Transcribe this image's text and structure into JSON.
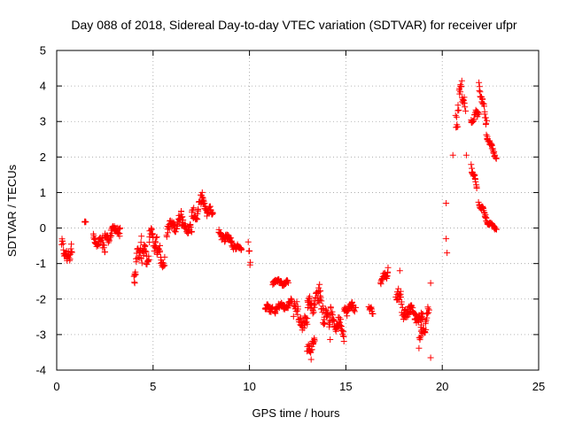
{
  "chart_data": {
    "type": "scatter",
    "title": "Day 088 of 2018, Sidereal Day-to-day VTEC variation (SDTVAR) for receiver ufpr",
    "xlabel": "GPS time / hours",
    "ylabel": "SDTVAR / TECUs",
    "xlim": [
      0,
      25
    ],
    "ylim": [
      -4,
      5
    ],
    "xticks": [
      "0",
      "5",
      "10",
      "15",
      "20",
      "25"
    ],
    "yticks": [
      "-4",
      "-3",
      "-2",
      "-1",
      "0",
      "1",
      "2",
      "3",
      "4",
      "5"
    ],
    "grid": true,
    "marker": "+",
    "colors": {
      "points": "#ff0000",
      "grid": "#a0a0a0",
      "axis": "#000000"
    },
    "series": [
      {
        "name": "SDTVAR",
        "segments": [
          {
            "x": [
              0.25,
              0.55
            ],
            "y": [
              -0.45,
              -0.9
            ],
            "jitter": 0.2
          },
          {
            "x": [
              0.55,
              0.8
            ],
            "y": [
              -0.85,
              -0.6
            ],
            "jitter": 0.2
          },
          {
            "x": [
              1.45,
              1.5
            ],
            "y": [
              0.18,
              0.18
            ],
            "jitter": 0.02
          },
          {
            "x": [
              1.9,
              2.5
            ],
            "y": [
              -0.35,
              -0.5
            ],
            "jitter": 0.22
          },
          {
            "x": [
              2.5,
              3.3
            ],
            "y": [
              -0.25,
              0.0
            ],
            "jitter": 0.22
          },
          {
            "x": [
              4.0,
              4.4
            ],
            "y": [
              -1.4,
              -0.3
            ],
            "jitter": 0.35
          },
          {
            "x": [
              4.4,
              4.8
            ],
            "y": [
              -0.6,
              -0.9
            ],
            "jitter": 0.4
          },
          {
            "x": [
              4.8,
              5.2
            ],
            "y": [
              -0.1,
              -0.5
            ],
            "jitter": 0.3
          },
          {
            "x": [
              5.2,
              5.6
            ],
            "y": [
              -0.5,
              -1.1
            ],
            "jitter": 0.3
          },
          {
            "x": [
              5.7,
              6.5
            ],
            "y": [
              -0.1,
              0.3
            ],
            "jitter": 0.25
          },
          {
            "x": [
              6.5,
              7.0
            ],
            "y": [
              0.1,
              -0.1
            ],
            "jitter": 0.2
          },
          {
            "x": [
              7.0,
              7.6
            ],
            "y": [
              0.2,
              0.8
            ],
            "jitter": 0.3
          },
          {
            "x": [
              7.6,
              8.1
            ],
            "y": [
              0.6,
              0.4
            ],
            "jitter": 0.2
          },
          {
            "x": [
              8.4,
              9.2
            ],
            "y": [
              -0.1,
              -0.45
            ],
            "jitter": 0.18
          },
          {
            "x": [
              9.2,
              9.6
            ],
            "y": [
              -0.5,
              -0.55
            ],
            "jitter": 0.1
          },
          {
            "x": [
              9.95,
              10.05
            ],
            "y": [
              -0.4,
              -1.0
            ],
            "jitter": 0.2
          },
          {
            "x": [
              10.8,
              11.2
            ],
            "y": [
              -2.2,
              -2.3
            ],
            "jitter": 0.12
          },
          {
            "x": [
              11.2,
              12.0
            ],
            "y": [
              -1.5,
              -1.55
            ],
            "jitter": 0.1
          },
          {
            "x": [
              11.3,
              12.2
            ],
            "y": [
              -2.3,
              -2.1
            ],
            "jitter": 0.15
          },
          {
            "x": [
              12.3,
              13.0
            ],
            "y": [
              -2.3,
              -2.8
            ],
            "jitter": 0.35
          },
          {
            "x": [
              13.0,
              13.4
            ],
            "y": [
              -3.5,
              -3.2
            ],
            "jitter": 0.2
          },
          {
            "x": [
              13.0,
              13.6
            ],
            "y": [
              -2.2,
              -2.0
            ],
            "jitter": 0.3
          },
          {
            "x": [
              13.6,
              14.2
            ],
            "y": [
              -1.9,
              -2.8
            ],
            "jitter": 0.45
          },
          {
            "x": [
              14.2,
              14.9
            ],
            "y": [
              -2.5,
              -2.9
            ],
            "jitter": 0.3
          },
          {
            "x": [
              14.9,
              15.5
            ],
            "y": [
              -2.3,
              -2.2
            ],
            "jitter": 0.2
          },
          {
            "x": [
              16.2,
              16.4
            ],
            "y": [
              -2.2,
              -2.4
            ],
            "jitter": 0.08
          },
          {
            "x": [
              16.8,
              17.2
            ],
            "y": [
              -1.5,
              -1.2
            ],
            "jitter": 0.15
          },
          {
            "x": [
              17.6,
              18.2
            ],
            "y": [
              -1.8,
              -2.5
            ],
            "jitter": 0.35
          },
          {
            "x": [
              18.2,
              19.0
            ],
            "y": [
              -2.3,
              -2.6
            ],
            "jitter": 0.2
          },
          {
            "x": [
              18.8,
              19.3
            ],
            "y": [
              -3.2,
              -2.4
            ],
            "jitter": 0.35
          },
          {
            "x": [
              20.7,
              21.0
            ],
            "y": [
              2.8,
              4.2
            ],
            "jitter": 0.4
          },
          {
            "x": [
              21.0,
              21.2
            ],
            "y": [
              3.8,
              3.4
            ],
            "jitter": 0.2
          },
          {
            "x": [
              21.5,
              21.9
            ],
            "y": [
              3.0,
              3.3
            ],
            "jitter": 0.15
          },
          {
            "x": [
              21.9,
              22.3
            ],
            "y": [
              4.0,
              3.0
            ],
            "jitter": 0.2
          },
          {
            "x": [
              22.3,
              22.8
            ],
            "y": [
              2.6,
              2.0
            ],
            "jitter": 0.12
          },
          {
            "x": [
              21.5,
              21.8
            ],
            "y": [
              1.7,
              1.2
            ],
            "jitter": 0.12
          },
          {
            "x": [
              21.9,
              22.3
            ],
            "y": [
              0.7,
              0.3
            ],
            "jitter": 0.12
          },
          {
            "x": [
              22.3,
              22.8
            ],
            "y": [
              0.2,
              0.0
            ],
            "jitter": 0.08
          }
        ],
        "outliers": [
          {
            "x": 19.4,
            "y": -3.65
          },
          {
            "x": 19.4,
            "y": -1.55
          },
          {
            "x": 17.8,
            "y": -1.2
          },
          {
            "x": 20.2,
            "y": 0.7
          },
          {
            "x": 20.2,
            "y": -0.3
          },
          {
            "x": 20.25,
            "y": -0.7
          },
          {
            "x": 20.55,
            "y": 2.05
          },
          {
            "x": 21.25,
            "y": 2.05
          },
          {
            "x": 4.05,
            "y": -1.55
          },
          {
            "x": 7.55,
            "y": 1.0
          },
          {
            "x": 13.2,
            "y": -3.7
          }
        ]
      }
    ]
  }
}
